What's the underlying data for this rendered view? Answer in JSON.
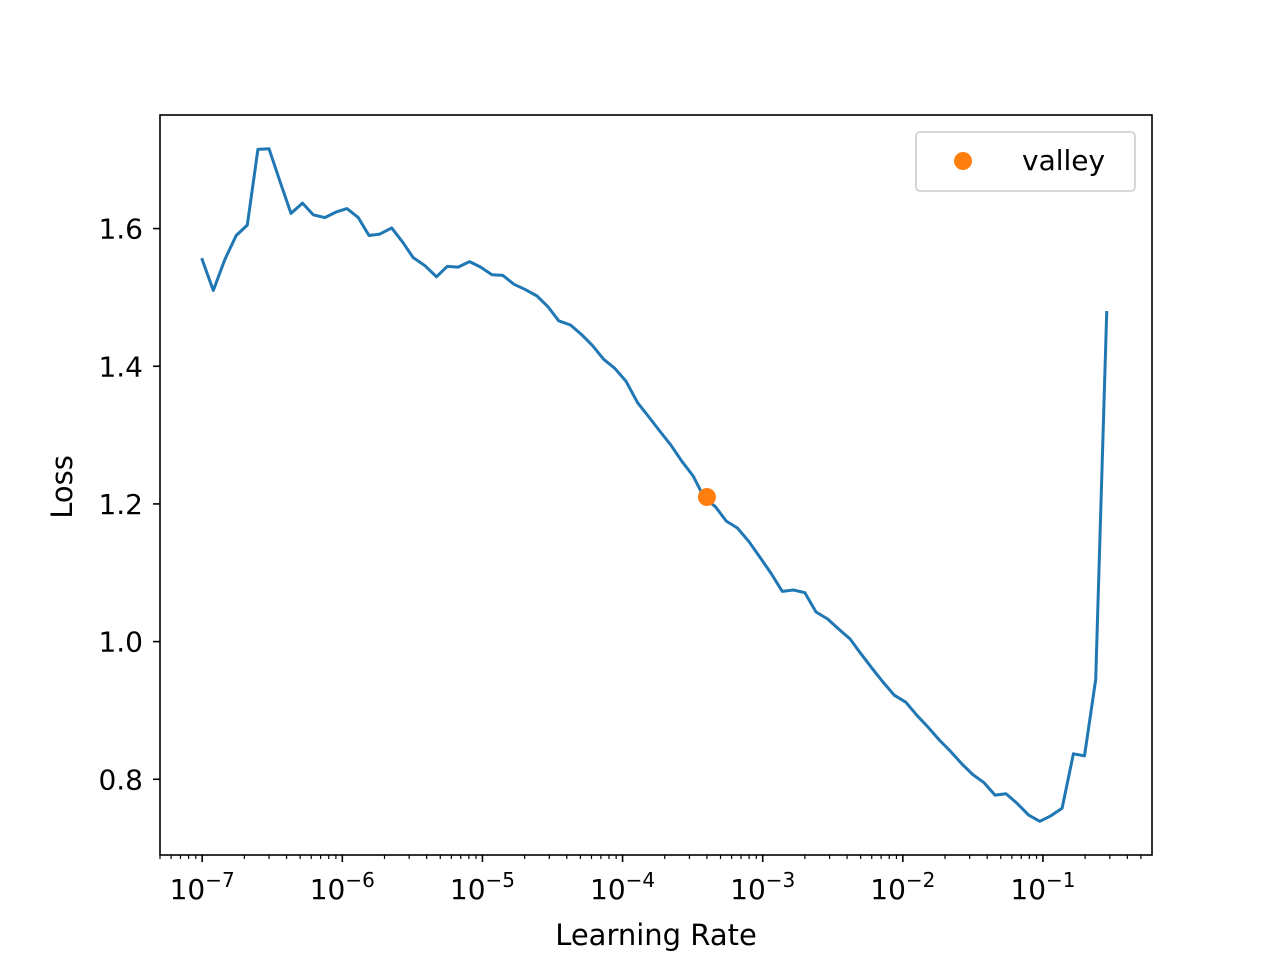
{
  "chart_data": {
    "type": "line",
    "xscale": "log",
    "xlabel": "Learning Rate",
    "ylabel": "Loss",
    "xlim": [
      5e-08,
      0.6
    ],
    "ylim": [
      0.69,
      1.765
    ],
    "xticks": [
      {
        "value": 1e-07,
        "base": "10",
        "exp": "−7"
      },
      {
        "value": 1e-06,
        "base": "10",
        "exp": "−6"
      },
      {
        "value": 1e-05,
        "base": "10",
        "exp": "−5"
      },
      {
        "value": 0.0001,
        "base": "10",
        "exp": "−4"
      },
      {
        "value": 0.001,
        "base": "10",
        "exp": "−3"
      },
      {
        "value": 0.01,
        "base": "10",
        "exp": "−2"
      },
      {
        "value": 0.1,
        "base": "10",
        "exp": "−1"
      }
    ],
    "yticks": [
      {
        "value": 0.8,
        "label": "0.8"
      },
      {
        "value": 1.0,
        "label": "1.0"
      },
      {
        "value": 1.2,
        "label": "1.2"
      },
      {
        "value": 1.4,
        "label": "1.4"
      },
      {
        "value": 1.6,
        "label": "1.6"
      }
    ],
    "grid": false,
    "legend_position": "top-right",
    "series": [
      {
        "style": "line",
        "color": "#1f77b4",
        "x": [
          1e-07,
          1.2e-07,
          1.45e-07,
          1.75e-07,
          2.1e-07,
          2.5e-07,
          3e-07,
          3.6e-07,
          4.3e-07,
          5.2e-07,
          6.2e-07,
          7.5e-07,
          9e-07,
          1.08e-06,
          1.3e-06,
          1.55e-06,
          1.85e-06,
          2.25e-06,
          2.7e-06,
          3.2e-06,
          3.9e-06,
          4.7e-06,
          5.6e-06,
          6.7e-06,
          8.1e-06,
          9.7e-06,
          1.17e-05,
          1.4e-05,
          1.68e-05,
          2e-05,
          2.45e-05,
          2.95e-05,
          3.5e-05,
          4.25e-05,
          5.1e-05,
          6.1e-05,
          7.35e-05,
          8.8e-05,
          0.000106,
          0.000128,
          0.000153,
          0.000184,
          0.00022,
          0.000265,
          0.00032,
          0.00038,
          0.00046,
          0.00055,
          0.00066,
          0.0008,
          0.00096,
          0.00115,
          0.00138,
          0.00166,
          0.002,
          0.0024,
          0.0029,
          0.0035,
          0.0042,
          0.005,
          0.006,
          0.0073,
          0.0087,
          0.0105,
          0.0126,
          0.0151,
          0.0182,
          0.0218,
          0.0262,
          0.0315,
          0.038,
          0.0455,
          0.0545,
          0.0655,
          0.079,
          0.095,
          0.114,
          0.137,
          0.165,
          0.198,
          0.238,
          0.285
        ],
        "y": [
          1.555,
          1.51,
          1.555,
          1.59,
          1.605,
          1.715,
          1.716,
          1.668,
          1.622,
          1.637,
          1.62,
          1.616,
          1.624,
          1.629,
          1.616,
          1.59,
          1.592,
          1.601,
          1.58,
          1.558,
          1.546,
          1.53,
          1.545,
          1.544,
          1.552,
          1.544,
          1.533,
          1.532,
          1.519,
          1.512,
          1.502,
          1.486,
          1.466,
          1.46,
          1.446,
          1.43,
          1.41,
          1.397,
          1.378,
          1.347,
          1.327,
          1.306,
          1.286,
          1.262,
          1.24,
          1.21,
          1.196,
          1.175,
          1.165,
          1.145,
          1.122,
          1.099,
          1.073,
          1.075,
          1.071,
          1.043,
          1.033,
          1.018,
          1.004,
          0.983,
          0.962,
          0.94,
          0.922,
          0.912,
          0.893,
          0.876,
          0.857,
          0.841,
          0.823,
          0.807,
          0.795,
          0.777,
          0.779,
          0.765,
          0.748,
          0.739,
          0.747,
          0.758,
          0.837,
          0.834,
          0.945,
          1.478
        ]
      },
      {
        "name": "valley",
        "style": "marker",
        "color": "#ff7f0e",
        "x": [
          0.0004
        ],
        "y": [
          1.21
        ]
      }
    ]
  }
}
